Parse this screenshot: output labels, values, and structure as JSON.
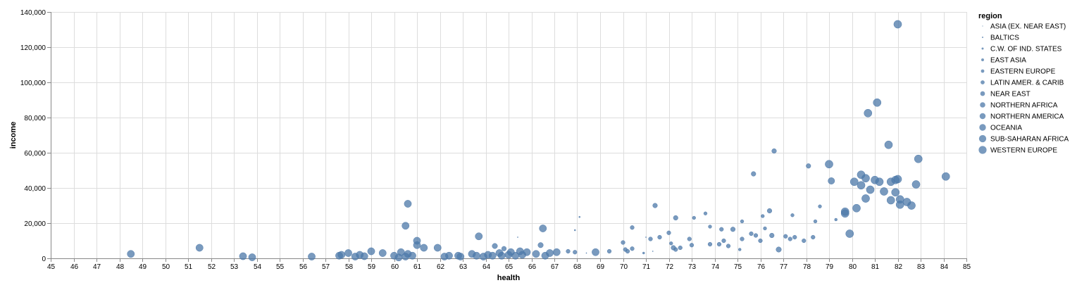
{
  "chart_data": {
    "type": "scatter",
    "xlabel": "health",
    "ylabel": "income",
    "xlim": [
      45,
      85
    ],
    "ylim": [
      0,
      140000
    ],
    "x_ticks": [
      45,
      46,
      47,
      48,
      49,
      50,
      51,
      52,
      53,
      54,
      55,
      56,
      57,
      58,
      59,
      60,
      61,
      62,
      63,
      64,
      65,
      66,
      67,
      68,
      69,
      70,
      71,
      72,
      73,
      74,
      75,
      76,
      77,
      78,
      79,
      80,
      81,
      82,
      83,
      84,
      85
    ],
    "y_ticks": [
      0,
      20000,
      40000,
      60000,
      80000,
      100000,
      120000,
      140000
    ],
    "y_tick_labels": [
      "0",
      "20,000",
      "40,000",
      "60,000",
      "80,000",
      "100,000",
      "120,000",
      "140,000"
    ],
    "grid": true,
    "color": "#4c78a8",
    "size_encoding": "region",
    "legend": {
      "title": "region",
      "position": "right",
      "entries": [
        "ASIA (EX. NEAR EAST)",
        "BALTICS",
        "C.W. OF IND. STATES",
        "EAST ASIA",
        "EASTERN EUROPE",
        "LATIN AMER. & CARIB",
        "NEAR EAST",
        "NORTHERN AFRICA",
        "NORTHERN AMERICA",
        "OCEANIA",
        "SUB-SAHARAN AFRICA",
        "WESTERN EUROPE"
      ]
    },
    "points": [
      {
        "x": 48.5,
        "y": 2500,
        "region": "SUB-SAHARAN AFRICA"
      },
      {
        "x": 51.5,
        "y": 6000,
        "region": "SUB-SAHARAN AFRICA"
      },
      {
        "x": 53.4,
        "y": 1200,
        "region": "SUB-SAHARAN AFRICA"
      },
      {
        "x": 53.8,
        "y": 600,
        "region": "SUB-SAHARAN AFRICA"
      },
      {
        "x": 56.4,
        "y": 1000,
        "region": "SUB-SAHARAN AFRICA"
      },
      {
        "x": 57.6,
        "y": 1500,
        "region": "SUB-SAHARAN AFRICA"
      },
      {
        "x": 57.7,
        "y": 2000,
        "region": "SUB-SAHARAN AFRICA"
      },
      {
        "x": 58.0,
        "y": 3000,
        "region": "SUB-SAHARAN AFRICA"
      },
      {
        "x": 58.3,
        "y": 1000,
        "region": "SUB-SAHARAN AFRICA"
      },
      {
        "x": 58.5,
        "y": 2000,
        "region": "SUB-SAHARAN AFRICA"
      },
      {
        "x": 58.7,
        "y": 1200,
        "region": "SUB-SAHARAN AFRICA"
      },
      {
        "x": 59.0,
        "y": 4000,
        "region": "SUB-SAHARAN AFRICA"
      },
      {
        "x": 59.5,
        "y": 3000,
        "region": "SUB-SAHARAN AFRICA"
      },
      {
        "x": 60.0,
        "y": 1500,
        "region": "SUB-SAHARAN AFRICA"
      },
      {
        "x": 60.2,
        "y": 500,
        "region": "SUB-SAHARAN AFRICA"
      },
      {
        "x": 60.3,
        "y": 3500,
        "region": "SUB-SAHARAN AFRICA"
      },
      {
        "x": 60.5,
        "y": 1000,
        "region": "SUB-SAHARAN AFRICA"
      },
      {
        "x": 60.6,
        "y": 2500,
        "region": "SUB-SAHARAN AFRICA"
      },
      {
        "x": 60.5,
        "y": 18500,
        "region": "SUB-SAHARAN AFRICA"
      },
      {
        "x": 60.6,
        "y": 31000,
        "region": "SUB-SAHARAN AFRICA"
      },
      {
        "x": 60.8,
        "y": 1500,
        "region": "SUB-SAHARAN AFRICA"
      },
      {
        "x": 61.0,
        "y": 7500,
        "region": "SUB-SAHARAN AFRICA"
      },
      {
        "x": 61.0,
        "y": 10000,
        "region": "SUB-SAHARAN AFRICA"
      },
      {
        "x": 61.3,
        "y": 6000,
        "region": "SUB-SAHARAN AFRICA"
      },
      {
        "x": 61.9,
        "y": 6000,
        "region": "SUB-SAHARAN AFRICA"
      },
      {
        "x": 62.2,
        "y": 1000,
        "region": "SUB-SAHARAN AFRICA"
      },
      {
        "x": 62.4,
        "y": 1500,
        "region": "SUB-SAHARAN AFRICA"
      },
      {
        "x": 62.8,
        "y": 1500,
        "region": "SUB-SAHARAN AFRICA"
      },
      {
        "x": 62.9,
        "y": 1000,
        "region": "SUB-SAHARAN AFRICA"
      },
      {
        "x": 63.4,
        "y": 2500,
        "region": "SUB-SAHARAN AFRICA"
      },
      {
        "x": 63.6,
        "y": 1500,
        "region": "SUB-SAHARAN AFRICA"
      },
      {
        "x": 63.7,
        "y": 12500,
        "region": "SUB-SAHARAN AFRICA"
      },
      {
        "x": 63.9,
        "y": 1000,
        "region": "SUB-SAHARAN AFRICA"
      },
      {
        "x": 64.1,
        "y": 2000,
        "region": "SUB-SAHARAN AFRICA"
      },
      {
        "x": 64.3,
        "y": 1500,
        "region": "SUB-SAHARAN AFRICA"
      },
      {
        "x": 64.4,
        "y": 7000,
        "region": "NORTHERN AFRICA"
      },
      {
        "x": 64.6,
        "y": 3000,
        "region": "SUB-SAHARAN AFRICA"
      },
      {
        "x": 64.7,
        "y": 1500,
        "region": "SUB-SAHARAN AFRICA"
      },
      {
        "x": 64.8,
        "y": 5500,
        "region": "NEAR EAST"
      },
      {
        "x": 65.0,
        "y": 2000,
        "region": "SUB-SAHARAN AFRICA"
      },
      {
        "x": 65.1,
        "y": 3500,
        "region": "SUB-SAHARAN AFRICA"
      },
      {
        "x": 65.3,
        "y": 1500,
        "region": "SUB-SAHARAN AFRICA"
      },
      {
        "x": 65.4,
        "y": 12000,
        "region": "ASIA (EX. NEAR EAST)"
      },
      {
        "x": 65.5,
        "y": 4000,
        "region": "SUB-SAHARAN AFRICA"
      },
      {
        "x": 65.6,
        "y": 2000,
        "region": "SUB-SAHARAN AFRICA"
      },
      {
        "x": 65.8,
        "y": 3500,
        "region": "SUB-SAHARAN AFRICA"
      },
      {
        "x": 66.2,
        "y": 2500,
        "region": "SUB-SAHARAN AFRICA"
      },
      {
        "x": 66.4,
        "y": 7500,
        "region": "NORTHERN AFRICA"
      },
      {
        "x": 66.5,
        "y": 17000,
        "region": "SUB-SAHARAN AFRICA"
      },
      {
        "x": 66.6,
        "y": 1500,
        "region": "SUB-SAHARAN AFRICA"
      },
      {
        "x": 66.8,
        "y": 3000,
        "region": "SUB-SAHARAN AFRICA"
      },
      {
        "x": 67.1,
        "y": 3500,
        "region": "SUB-SAHARAN AFRICA"
      },
      {
        "x": 67.6,
        "y": 4000,
        "region": "LATIN AMER. & CARIB"
      },
      {
        "x": 67.9,
        "y": 3500,
        "region": "LATIN AMER. & CARIB"
      },
      {
        "x": 67.9,
        "y": 16000,
        "region": "BALTICS"
      },
      {
        "x": 68.1,
        "y": 23500,
        "region": "BALTICS"
      },
      {
        "x": 68.4,
        "y": 3000,
        "region": "ASIA (EX. NEAR EAST)"
      },
      {
        "x": 68.8,
        "y": 3500,
        "region": "SUB-SAHARAN AFRICA"
      },
      {
        "x": 69.4,
        "y": 4000,
        "region": "LATIN AMER. & CARIB"
      },
      {
        "x": 70.0,
        "y": 9000,
        "region": "LATIN AMER. & CARIB"
      },
      {
        "x": 70.1,
        "y": 5000,
        "region": "LATIN AMER. & CARIB"
      },
      {
        "x": 70.2,
        "y": 4000,
        "region": "LATIN AMER. & CARIB"
      },
      {
        "x": 70.4,
        "y": 17500,
        "region": "LATIN AMER. & CARIB"
      },
      {
        "x": 70.4,
        "y": 5500,
        "region": "LATIN AMER. & CARIB"
      },
      {
        "x": 70.9,
        "y": 3000,
        "region": "C.W. OF IND. STATES"
      },
      {
        "x": 71.0,
        "y": 12000,
        "region": "ASIA (EX. NEAR EAST)"
      },
      {
        "x": 71.2,
        "y": 11000,
        "region": "LATIN AMER. & CARIB"
      },
      {
        "x": 71.3,
        "y": 4000,
        "region": "ASIA (EX. NEAR EAST)"
      },
      {
        "x": 71.4,
        "y": 30000,
        "region": "NEAR EAST"
      },
      {
        "x": 71.6,
        "y": 12000,
        "region": "LATIN AMER. & CARIB"
      },
      {
        "x": 72.0,
        "y": 14500,
        "region": "LATIN AMER. & CARIB"
      },
      {
        "x": 72.1,
        "y": 8500,
        "region": "EASTERN EUROPE"
      },
      {
        "x": 72.2,
        "y": 6000,
        "region": "NEAR EAST"
      },
      {
        "x": 72.3,
        "y": 5000,
        "region": "LATIN AMER. & CARIB"
      },
      {
        "x": 72.3,
        "y": 23000,
        "region": "NEAR EAST"
      },
      {
        "x": 72.5,
        "y": 6000,
        "region": "LATIN AMER. & CARIB"
      },
      {
        "x": 72.9,
        "y": 11000,
        "region": "LATIN AMER. & CARIB"
      },
      {
        "x": 73.0,
        "y": 7500,
        "region": "LATIN AMER. & CARIB"
      },
      {
        "x": 73.1,
        "y": 23000,
        "region": "EASTERN EUROPE"
      },
      {
        "x": 73.6,
        "y": 25500,
        "region": "EASTERN EUROPE"
      },
      {
        "x": 73.8,
        "y": 18000,
        "region": "EASTERN EUROPE"
      },
      {
        "x": 73.8,
        "y": 8000,
        "region": "LATIN AMER. & CARIB"
      },
      {
        "x": 74.2,
        "y": 8000,
        "region": "LATIN AMER. & CARIB"
      },
      {
        "x": 74.3,
        "y": 16500,
        "region": "LATIN AMER. & CARIB"
      },
      {
        "x": 74.4,
        "y": 10000,
        "region": "LATIN AMER. & CARIB"
      },
      {
        "x": 74.6,
        "y": 7000,
        "region": "LATIN AMER. & CARIB"
      },
      {
        "x": 74.8,
        "y": 16500,
        "region": "NEAR EAST"
      },
      {
        "x": 75.1,
        "y": 5000,
        "region": "EAST ASIA"
      },
      {
        "x": 75.2,
        "y": 11000,
        "region": "LATIN AMER. & CARIB"
      },
      {
        "x": 75.2,
        "y": 21000,
        "region": "EASTERN EUROPE"
      },
      {
        "x": 75.6,
        "y": 14000,
        "region": "LATIN AMER. & CARIB"
      },
      {
        "x": 75.7,
        "y": 48000,
        "region": "NEAR EAST"
      },
      {
        "x": 75.8,
        "y": 13000,
        "region": "LATIN AMER. & CARIB"
      },
      {
        "x": 76.0,
        "y": 10000,
        "region": "LATIN AMER. & CARIB"
      },
      {
        "x": 76.1,
        "y": 24000,
        "region": "EASTERN EUROPE"
      },
      {
        "x": 76.2,
        "y": 17000,
        "region": "EASTERN EUROPE"
      },
      {
        "x": 76.4,
        "y": 27000,
        "region": "NEAR EAST"
      },
      {
        "x": 76.5,
        "y": 13000,
        "region": "NEAR EAST"
      },
      {
        "x": 76.6,
        "y": 61000,
        "region": "NEAR EAST"
      },
      {
        "x": 76.8,
        "y": 5000,
        "region": "NORTHERN AFRICA"
      },
      {
        "x": 77.1,
        "y": 12500,
        "region": "LATIN AMER. & CARIB"
      },
      {
        "x": 77.3,
        "y": 11000,
        "region": "LATIN AMER. & CARIB"
      },
      {
        "x": 77.4,
        "y": 24500,
        "region": "EASTERN EUROPE"
      },
      {
        "x": 77.5,
        "y": 12000,
        "region": "LATIN AMER. & CARIB"
      },
      {
        "x": 77.9,
        "y": 10000,
        "region": "LATIN AMER. & CARIB"
      },
      {
        "x": 78.1,
        "y": 52500,
        "region": "NEAR EAST"
      },
      {
        "x": 78.3,
        "y": 12000,
        "region": "LATIN AMER. & CARIB"
      },
      {
        "x": 78.4,
        "y": 21000,
        "region": "EASTERN EUROPE"
      },
      {
        "x": 78.6,
        "y": 29500,
        "region": "EASTERN EUROPE"
      },
      {
        "x": 79.0,
        "y": 53500,
        "region": "WESTERN EUROPE"
      },
      {
        "x": 79.1,
        "y": 44000,
        "region": "OCEANIA"
      },
      {
        "x": 79.3,
        "y": 22000,
        "region": "EAST ASIA"
      },
      {
        "x": 79.7,
        "y": 25500,
        "region": "WESTERN EUROPE"
      },
      {
        "x": 79.7,
        "y": 26500,
        "region": "WESTERN EUROPE"
      },
      {
        "x": 79.9,
        "y": 14000,
        "region": "WESTERN EUROPE"
      },
      {
        "x": 80.1,
        "y": 43500,
        "region": "WESTERN EUROPE"
      },
      {
        "x": 80.2,
        "y": 28500,
        "region": "WESTERN EUROPE"
      },
      {
        "x": 80.4,
        "y": 47500,
        "region": "WESTERN EUROPE"
      },
      {
        "x": 80.4,
        "y": 41500,
        "region": "WESTERN EUROPE"
      },
      {
        "x": 80.6,
        "y": 45500,
        "region": "WESTERN EUROPE"
      },
      {
        "x": 80.6,
        "y": 34000,
        "region": "WESTERN EUROPE"
      },
      {
        "x": 80.7,
        "y": 82500,
        "region": "WESTERN EUROPE"
      },
      {
        "x": 80.8,
        "y": 39000,
        "region": "WESTERN EUROPE"
      },
      {
        "x": 81.0,
        "y": 44500,
        "region": "WESTERN EUROPE"
      },
      {
        "x": 81.1,
        "y": 88500,
        "region": "WESTERN EUROPE"
      },
      {
        "x": 81.2,
        "y": 43500,
        "region": "WESTERN EUROPE"
      },
      {
        "x": 81.4,
        "y": 38000,
        "region": "WESTERN EUROPE"
      },
      {
        "x": 81.6,
        "y": 64500,
        "region": "WESTERN EUROPE"
      },
      {
        "x": 81.7,
        "y": 33000,
        "region": "WESTERN EUROPE"
      },
      {
        "x": 81.7,
        "y": 43500,
        "region": "WESTERN EUROPE"
      },
      {
        "x": 81.9,
        "y": 37500,
        "region": "WESTERN EUROPE"
      },
      {
        "x": 81.9,
        "y": 44500,
        "region": "WESTERN EUROPE"
      },
      {
        "x": 82.0,
        "y": 45000,
        "region": "WESTERN EUROPE"
      },
      {
        "x": 82.0,
        "y": 133000,
        "region": "WESTERN EUROPE"
      },
      {
        "x": 82.1,
        "y": 30500,
        "region": "WESTERN EUROPE"
      },
      {
        "x": 82.1,
        "y": 33500,
        "region": "WESTERN EUROPE"
      },
      {
        "x": 82.4,
        "y": 32000,
        "region": "WESTERN EUROPE"
      },
      {
        "x": 82.6,
        "y": 30000,
        "region": "WESTERN EUROPE"
      },
      {
        "x": 82.8,
        "y": 42000,
        "region": "WESTERN EUROPE"
      },
      {
        "x": 82.9,
        "y": 56500,
        "region": "WESTERN EUROPE"
      },
      {
        "x": 84.1,
        "y": 46500,
        "region": "WESTERN EUROPE"
      }
    ]
  }
}
